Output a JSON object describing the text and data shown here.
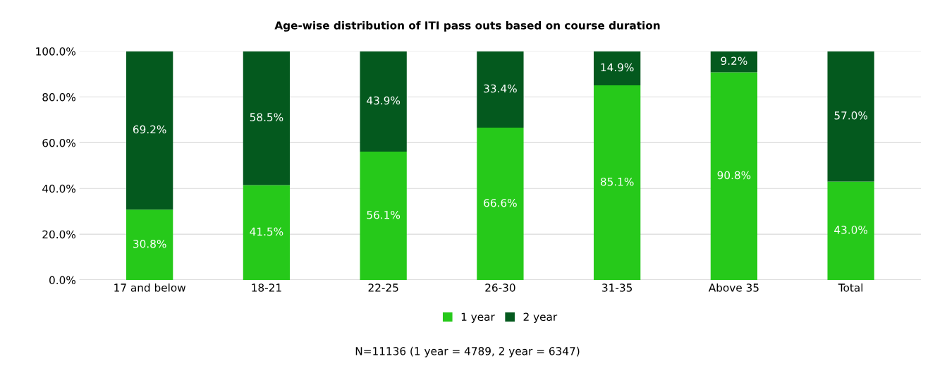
{
  "chart_data": {
    "type": "bar",
    "stacked": true,
    "title": "Age-wise distribution of ITI pass outs based on course duration",
    "categories": [
      "17 and below",
      "18-21",
      "22-25",
      "26-30",
      "31-35",
      "Above 35",
      "Total"
    ],
    "series": [
      {
        "name": "1 year",
        "color": "#26c91a",
        "values": [
          30.8,
          41.5,
          56.1,
          66.6,
          85.1,
          90.8,
          43.0
        ],
        "value_labels": [
          "30.8%",
          "41.5%",
          "56.1%",
          "66.6%",
          "85.1%",
          "90.8%",
          "43.0%"
        ]
      },
      {
        "name": "2 year",
        "color": "#04591e",
        "values": [
          69.2,
          58.5,
          43.9,
          33.4,
          14.9,
          9.2,
          57.0
        ],
        "value_labels": [
          "69.2%",
          "58.5%",
          "43.9%",
          "33.4%",
          "14.9%",
          "9.2%",
          "57.0%"
        ]
      }
    ],
    "ylim": [
      0,
      100
    ],
    "yticks": [
      {
        "value": 0,
        "label": "0.0%"
      },
      {
        "value": 20,
        "label": "20.0%"
      },
      {
        "value": 40,
        "label": "40.0%"
      },
      {
        "value": 60,
        "label": "60.0%"
      },
      {
        "value": 80,
        "label": "80.0%"
      },
      {
        "value": 100,
        "label": "100.0%"
      }
    ],
    "grid": "y",
    "legend": "bottom",
    "annotations": [
      "N=11136 (1 year = 4789, 2 year = 6347)"
    ]
  }
}
